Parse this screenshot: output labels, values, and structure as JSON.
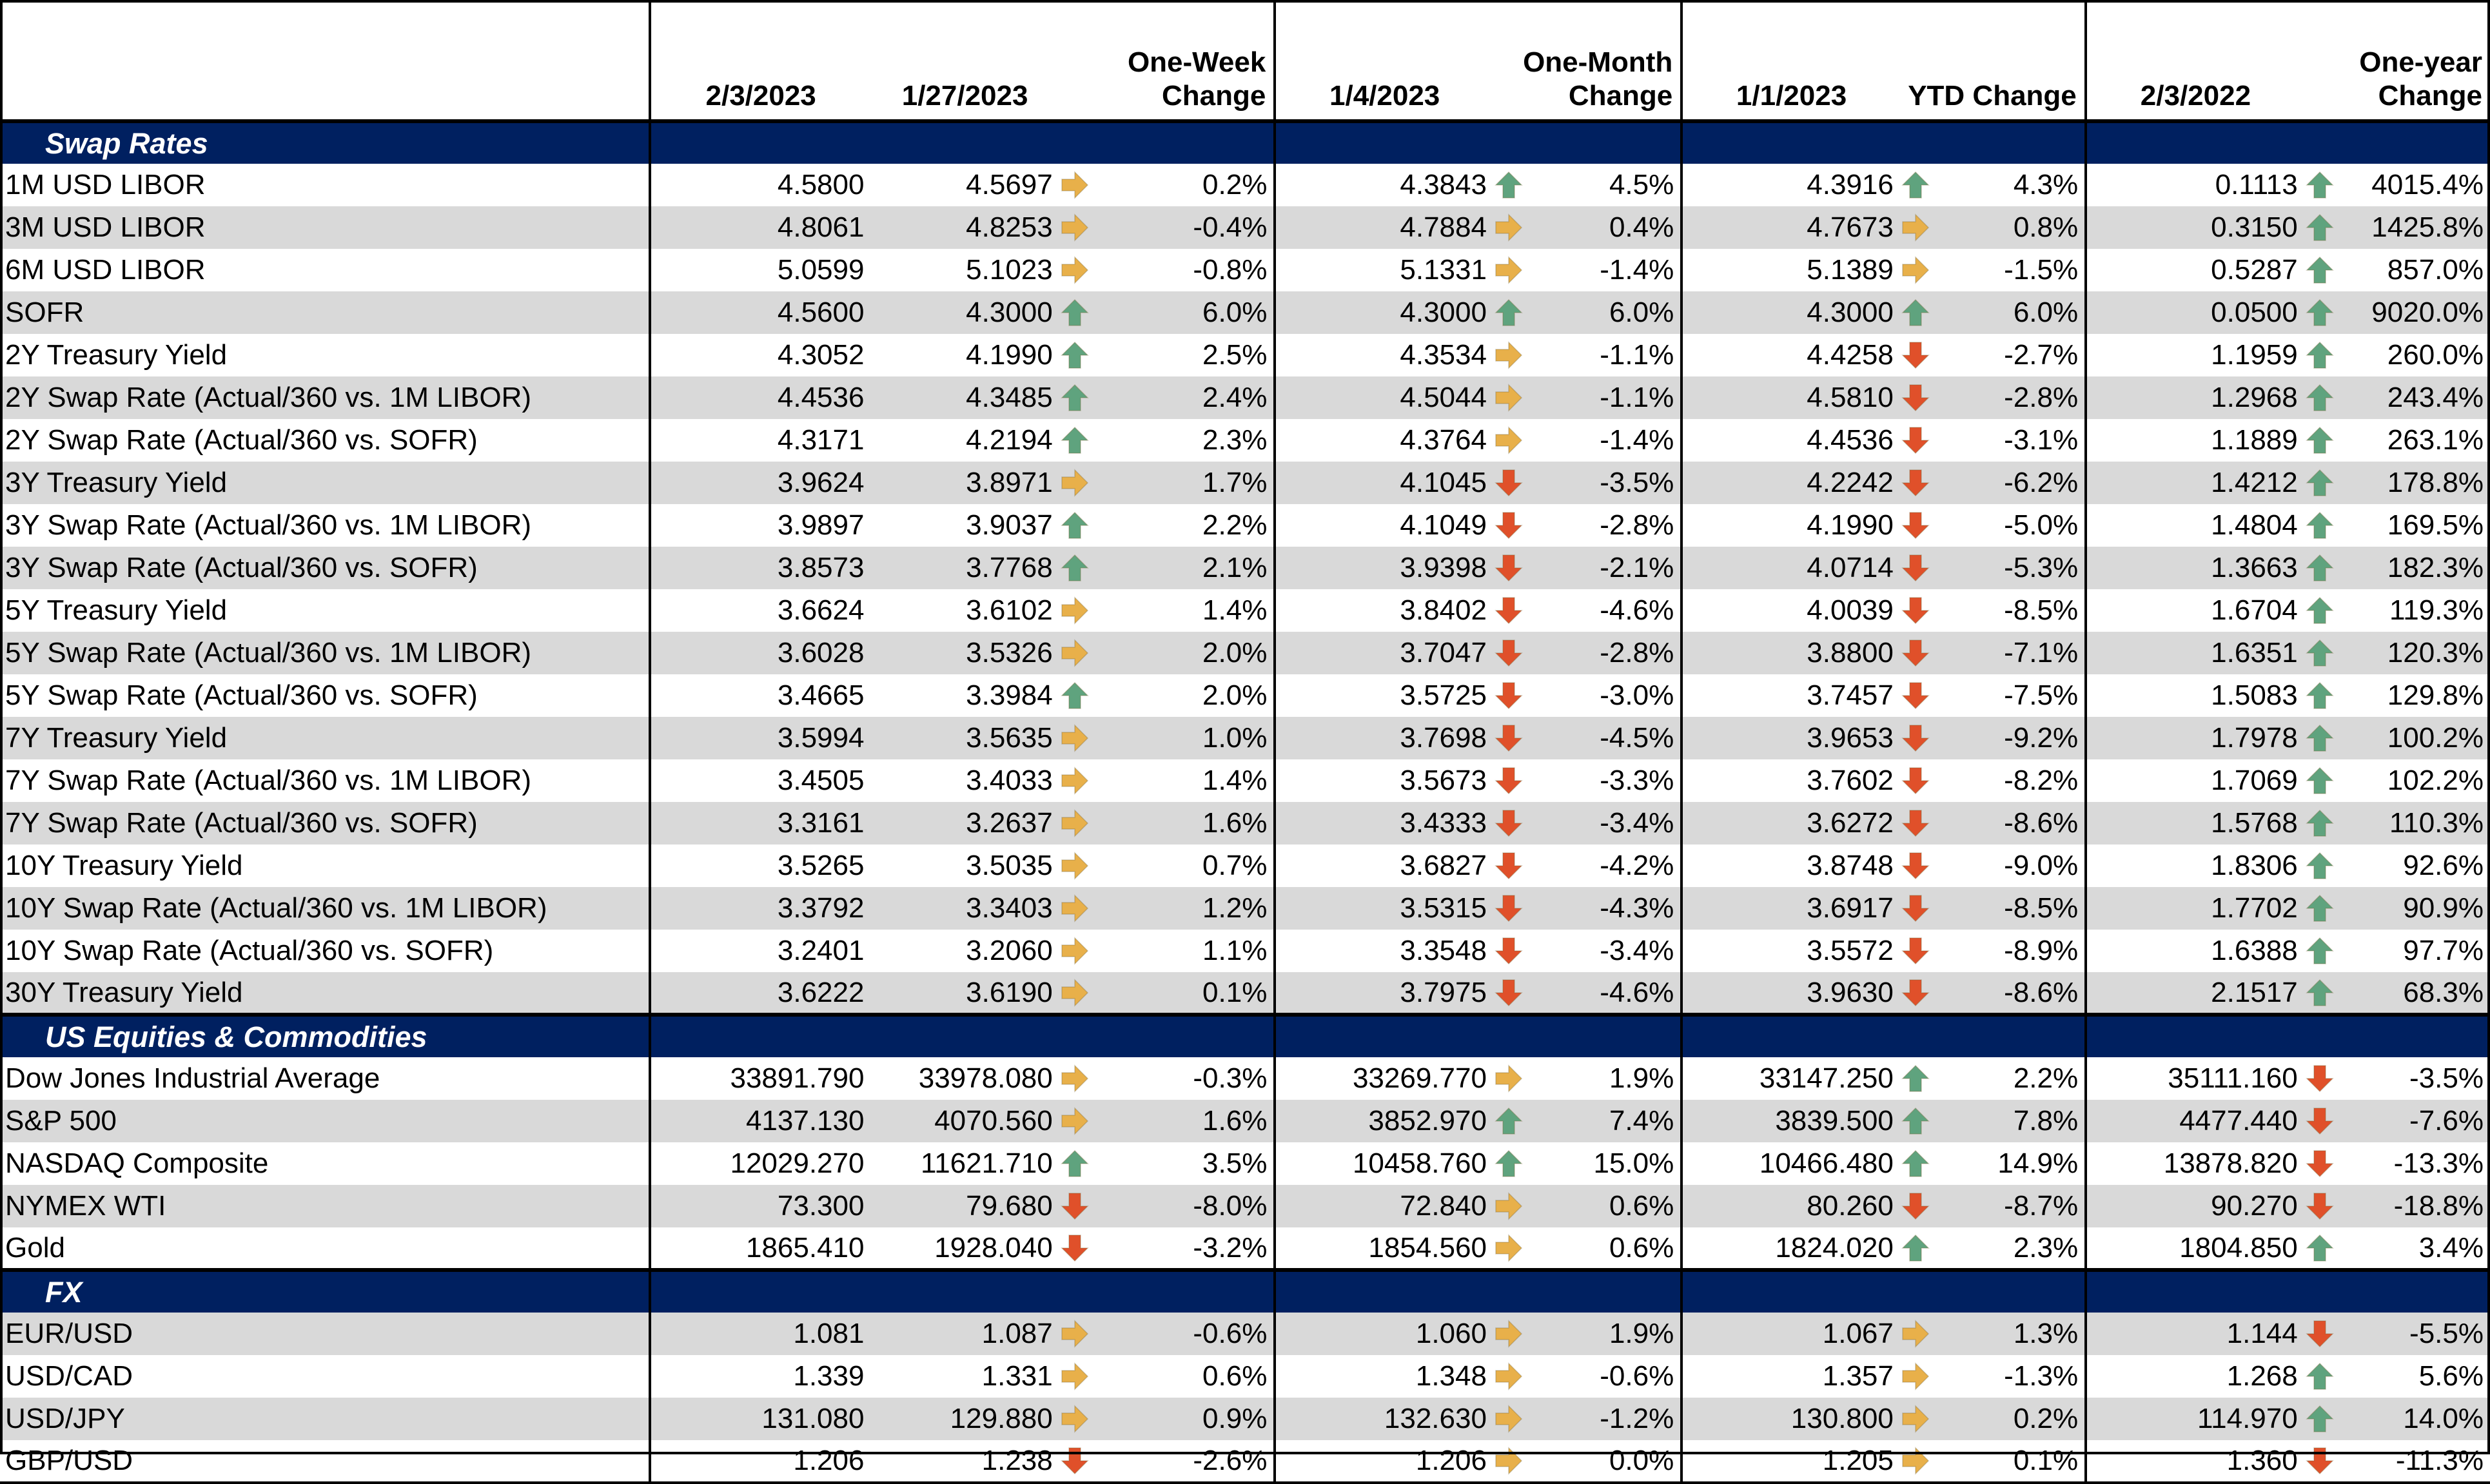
{
  "headers": {
    "label": "",
    "d1": "2/3/2023",
    "d2": "1/27/2023",
    "week_line1": "One-Week",
    "week_line2": "Change",
    "d3": "1/4/2023",
    "month_line1": "One-Month",
    "month_line2": "Change",
    "d4": "1/1/2023",
    "ytd": "YTD Change",
    "d5": "2/3/2022",
    "year_line1": "One-year",
    "year_line2": "Change"
  },
  "icon_colors": {
    "up": "#5fa37e",
    "flat": "#e8b04a",
    "down": "#e0502a"
  },
  "sections": [
    {
      "title": "Swap Rates",
      "rows": [
        {
          "label": "1M USD LIBOR",
          "v1": "4.5800",
          "v2": "4.5697",
          "i1": "flat",
          "c1": "0.2%",
          "v3": "4.3843",
          "i2": "up",
          "c2": "4.5%",
          "v4": "4.3916",
          "i3": "up",
          "c3": "4.3%",
          "v5": "0.1113",
          "i4": "up",
          "c4": "4015.4%"
        },
        {
          "label": "3M USD LIBOR",
          "v1": "4.8061",
          "v2": "4.8253",
          "i1": "flat",
          "c1": "-0.4%",
          "v3": "4.7884",
          "i2": "flat",
          "c2": "0.4%",
          "v4": "4.7673",
          "i3": "flat",
          "c3": "0.8%",
          "v5": "0.3150",
          "i4": "up",
          "c4": "1425.8%"
        },
        {
          "label": "6M USD LIBOR",
          "v1": "5.0599",
          "v2": "5.1023",
          "i1": "flat",
          "c1": "-0.8%",
          "v3": "5.1331",
          "i2": "flat",
          "c2": "-1.4%",
          "v4": "5.1389",
          "i3": "flat",
          "c3": "-1.5%",
          "v5": "0.5287",
          "i4": "up",
          "c4": "857.0%"
        },
        {
          "label": "SOFR",
          "v1": "4.5600",
          "v2": "4.3000",
          "i1": "up",
          "c1": "6.0%",
          "v3": "4.3000",
          "i2": "up",
          "c2": "6.0%",
          "v4": "4.3000",
          "i3": "up",
          "c3": "6.0%",
          "v5": "0.0500",
          "i4": "up",
          "c4": "9020.0%"
        },
        {
          "label": "2Y Treasury Yield",
          "v1": "4.3052",
          "v2": "4.1990",
          "i1": "up",
          "c1": "2.5%",
          "v3": "4.3534",
          "i2": "flat",
          "c2": "-1.1%",
          "v4": "4.4258",
          "i3": "down",
          "c3": "-2.7%",
          "v5": "1.1959",
          "i4": "up",
          "c4": "260.0%"
        },
        {
          "label": "2Y Swap Rate (Actual/360 vs. 1M LIBOR)",
          "v1": "4.4536",
          "v2": "4.3485",
          "i1": "up",
          "c1": "2.4%",
          "v3": "4.5044",
          "i2": "flat",
          "c2": "-1.1%",
          "v4": "4.5810",
          "i3": "down",
          "c3": "-2.8%",
          "v5": "1.2968",
          "i4": "up",
          "c4": "243.4%"
        },
        {
          "label": "2Y Swap Rate (Actual/360 vs. SOFR)",
          "v1": "4.3171",
          "v2": "4.2194",
          "i1": "up",
          "c1": "2.3%",
          "v3": "4.3764",
          "i2": "flat",
          "c2": "-1.4%",
          "v4": "4.4536",
          "i3": "down",
          "c3": "-3.1%",
          "v5": "1.1889",
          "i4": "up",
          "c4": "263.1%"
        },
        {
          "label": "3Y Treasury Yield",
          "v1": "3.9624",
          "v2": "3.8971",
          "i1": "flat",
          "c1": "1.7%",
          "v3": "4.1045",
          "i2": "down",
          "c2": "-3.5%",
          "v4": "4.2242",
          "i3": "down",
          "c3": "-6.2%",
          "v5": "1.4212",
          "i4": "up",
          "c4": "178.8%"
        },
        {
          "label": "3Y Swap Rate (Actual/360 vs. 1M LIBOR)",
          "v1": "3.9897",
          "v2": "3.9037",
          "i1": "up",
          "c1": "2.2%",
          "v3": "4.1049",
          "i2": "down",
          "c2": "-2.8%",
          "v4": "4.1990",
          "i3": "down",
          "c3": "-5.0%",
          "v5": "1.4804",
          "i4": "up",
          "c4": "169.5%"
        },
        {
          "label": "3Y Swap Rate (Actual/360 vs. SOFR)",
          "v1": "3.8573",
          "v2": "3.7768",
          "i1": "up",
          "c1": "2.1%",
          "v3": "3.9398",
          "i2": "down",
          "c2": "-2.1%",
          "v4": "4.0714",
          "i3": "down",
          "c3": "-5.3%",
          "v5": "1.3663",
          "i4": "up",
          "c4": "182.3%"
        },
        {
          "label": "5Y Treasury Yield",
          "v1": "3.6624",
          "v2": "3.6102",
          "i1": "flat",
          "c1": "1.4%",
          "v3": "3.8402",
          "i2": "down",
          "c2": "-4.6%",
          "v4": "4.0039",
          "i3": "down",
          "c3": "-8.5%",
          "v5": "1.6704",
          "i4": "up",
          "c4": "119.3%"
        },
        {
          "label": "5Y Swap Rate (Actual/360 vs. 1M LIBOR)",
          "v1": "3.6028",
          "v2": "3.5326",
          "i1": "flat",
          "c1": "2.0%",
          "v3": "3.7047",
          "i2": "down",
          "c2": "-2.8%",
          "v4": "3.8800",
          "i3": "down",
          "c3": "-7.1%",
          "v5": "1.6351",
          "i4": "up",
          "c4": "120.3%"
        },
        {
          "label": "5Y Swap Rate (Actual/360 vs. SOFR)",
          "v1": "3.4665",
          "v2": "3.3984",
          "i1": "up",
          "c1": "2.0%",
          "v3": "3.5725",
          "i2": "down",
          "c2": "-3.0%",
          "v4": "3.7457",
          "i3": "down",
          "c3": "-7.5%",
          "v5": "1.5083",
          "i4": "up",
          "c4": "129.8%"
        },
        {
          "label": "7Y Treasury Yield",
          "v1": "3.5994",
          "v2": "3.5635",
          "i1": "flat",
          "c1": "1.0%",
          "v3": "3.7698",
          "i2": "down",
          "c2": "-4.5%",
          "v4": "3.9653",
          "i3": "down",
          "c3": "-9.2%",
          "v5": "1.7978",
          "i4": "up",
          "c4": "100.2%"
        },
        {
          "label": "7Y Swap Rate (Actual/360 vs. 1M LIBOR)",
          "v1": "3.4505",
          "v2": "3.4033",
          "i1": "flat",
          "c1": "1.4%",
          "v3": "3.5673",
          "i2": "down",
          "c2": "-3.3%",
          "v4": "3.7602",
          "i3": "down",
          "c3": "-8.2%",
          "v5": "1.7069",
          "i4": "up",
          "c4": "102.2%"
        },
        {
          "label": "7Y Swap Rate (Actual/360 vs. SOFR)",
          "v1": "3.3161",
          "v2": "3.2637",
          "i1": "flat",
          "c1": "1.6%",
          "v3": "3.4333",
          "i2": "down",
          "c2": "-3.4%",
          "v4": "3.6272",
          "i3": "down",
          "c3": "-8.6%",
          "v5": "1.5768",
          "i4": "up",
          "c4": "110.3%"
        },
        {
          "label": "10Y Treasury Yield",
          "v1": "3.5265",
          "v2": "3.5035",
          "i1": "flat",
          "c1": "0.7%",
          "v3": "3.6827",
          "i2": "down",
          "c2": "-4.2%",
          "v4": "3.8748",
          "i3": "down",
          "c3": "-9.0%",
          "v5": "1.8306",
          "i4": "up",
          "c4": "92.6%"
        },
        {
          "label": "10Y Swap Rate (Actual/360 vs. 1M LIBOR)",
          "v1": "3.3792",
          "v2": "3.3403",
          "i1": "flat",
          "c1": "1.2%",
          "v3": "3.5315",
          "i2": "down",
          "c2": "-4.3%",
          "v4": "3.6917",
          "i3": "down",
          "c3": "-8.5%",
          "v5": "1.7702",
          "i4": "up",
          "c4": "90.9%"
        },
        {
          "label": "10Y Swap Rate (Actual/360 vs. SOFR)",
          "v1": "3.2401",
          "v2": "3.2060",
          "i1": "flat",
          "c1": "1.1%",
          "v3": "3.3548",
          "i2": "down",
          "c2": "-3.4%",
          "v4": "3.5572",
          "i3": "down",
          "c3": "-8.9%",
          "v5": "1.6388",
          "i4": "up",
          "c4": "97.7%"
        },
        {
          "label": "30Y Treasury Yield",
          "v1": "3.6222",
          "v2": "3.6190",
          "i1": "flat",
          "c1": "0.1%",
          "v3": "3.7975",
          "i2": "down",
          "c2": "-4.6%",
          "v4": "3.9630",
          "i3": "down",
          "c3": "-8.6%",
          "v5": "2.1517",
          "i4": "up",
          "c4": "68.3%"
        }
      ]
    },
    {
      "title": "US Equities & Commodities",
      "rows": [
        {
          "label": "Dow Jones Industrial Average",
          "v1": "33891.790",
          "v2": "33978.080",
          "i1": "flat",
          "c1": "-0.3%",
          "v3": "33269.770",
          "i2": "flat",
          "c2": "1.9%",
          "v4": "33147.250",
          "i3": "up",
          "c3": "2.2%",
          "v5": "35111.160",
          "i4": "down",
          "c4": "-3.5%"
        },
        {
          "label": "S&P 500",
          "v1": "4137.130",
          "v2": "4070.560",
          "i1": "flat",
          "c1": "1.6%",
          "v3": "3852.970",
          "i2": "up",
          "c2": "7.4%",
          "v4": "3839.500",
          "i3": "up",
          "c3": "7.8%",
          "v5": "4477.440",
          "i4": "down",
          "c4": "-7.6%"
        },
        {
          "label": "NASDAQ Composite",
          "v1": "12029.270",
          "v2": "11621.710",
          "i1": "up",
          "c1": "3.5%",
          "v3": "10458.760",
          "i2": "up",
          "c2": "15.0%",
          "v4": "10466.480",
          "i3": "up",
          "c3": "14.9%",
          "v5": "13878.820",
          "i4": "down",
          "c4": "-13.3%"
        },
        {
          "label": "NYMEX WTI",
          "v1": "73.300",
          "v2": "79.680",
          "i1": "down",
          "c1": "-8.0%",
          "v3": "72.840",
          "i2": "flat",
          "c2": "0.6%",
          "v4": "80.260",
          "i3": "down",
          "c3": "-8.7%",
          "v5": "90.270",
          "i4": "down",
          "c4": "-18.8%"
        },
        {
          "label": "Gold",
          "v1": "1865.410",
          "v2": "1928.040",
          "i1": "down",
          "c1": "-3.2%",
          "v3": "1854.560",
          "i2": "flat",
          "c2": "0.6%",
          "v4": "1824.020",
          "i3": "up",
          "c3": "2.3%",
          "v5": "1804.850",
          "i4": "up",
          "c4": "3.4%"
        }
      ]
    },
    {
      "title": "FX",
      "rows": [
        {
          "label": "EUR/USD",
          "v1": "1.081",
          "v2": "1.087",
          "i1": "flat",
          "c1": "-0.6%",
          "v3": "1.060",
          "i2": "flat",
          "c2": "1.9%",
          "v4": "1.067",
          "i3": "flat",
          "c3": "1.3%",
          "v5": "1.144",
          "i4": "down",
          "c4": "-5.5%"
        },
        {
          "label": "USD/CAD",
          "v1": "1.339",
          "v2": "1.331",
          "i1": "flat",
          "c1": "0.6%",
          "v3": "1.348",
          "i2": "flat",
          "c2": "-0.6%",
          "v4": "1.357",
          "i3": "flat",
          "c3": "-1.3%",
          "v5": "1.268",
          "i4": "up",
          "c4": "5.6%"
        },
        {
          "label": "USD/JPY",
          "v1": "131.080",
          "v2": "129.880",
          "i1": "flat",
          "c1": "0.9%",
          "v3": "132.630",
          "i2": "flat",
          "c2": "-1.2%",
          "v4": "130.800",
          "i3": "flat",
          "c3": "0.2%",
          "v5": "114.970",
          "i4": "up",
          "c4": "14.0%"
        },
        {
          "label": "GBP/USD",
          "v1": "1.206",
          "v2": "1.238",
          "i1": "down",
          "c1": "-2.6%",
          "v3": "1.206",
          "i2": "flat",
          "c2": "0.0%",
          "v4": "1.205",
          "i3": "flat",
          "c3": "0.1%",
          "v5": "1.360",
          "i4": "down",
          "c4": "-11.3%"
        }
      ]
    }
  ]
}
